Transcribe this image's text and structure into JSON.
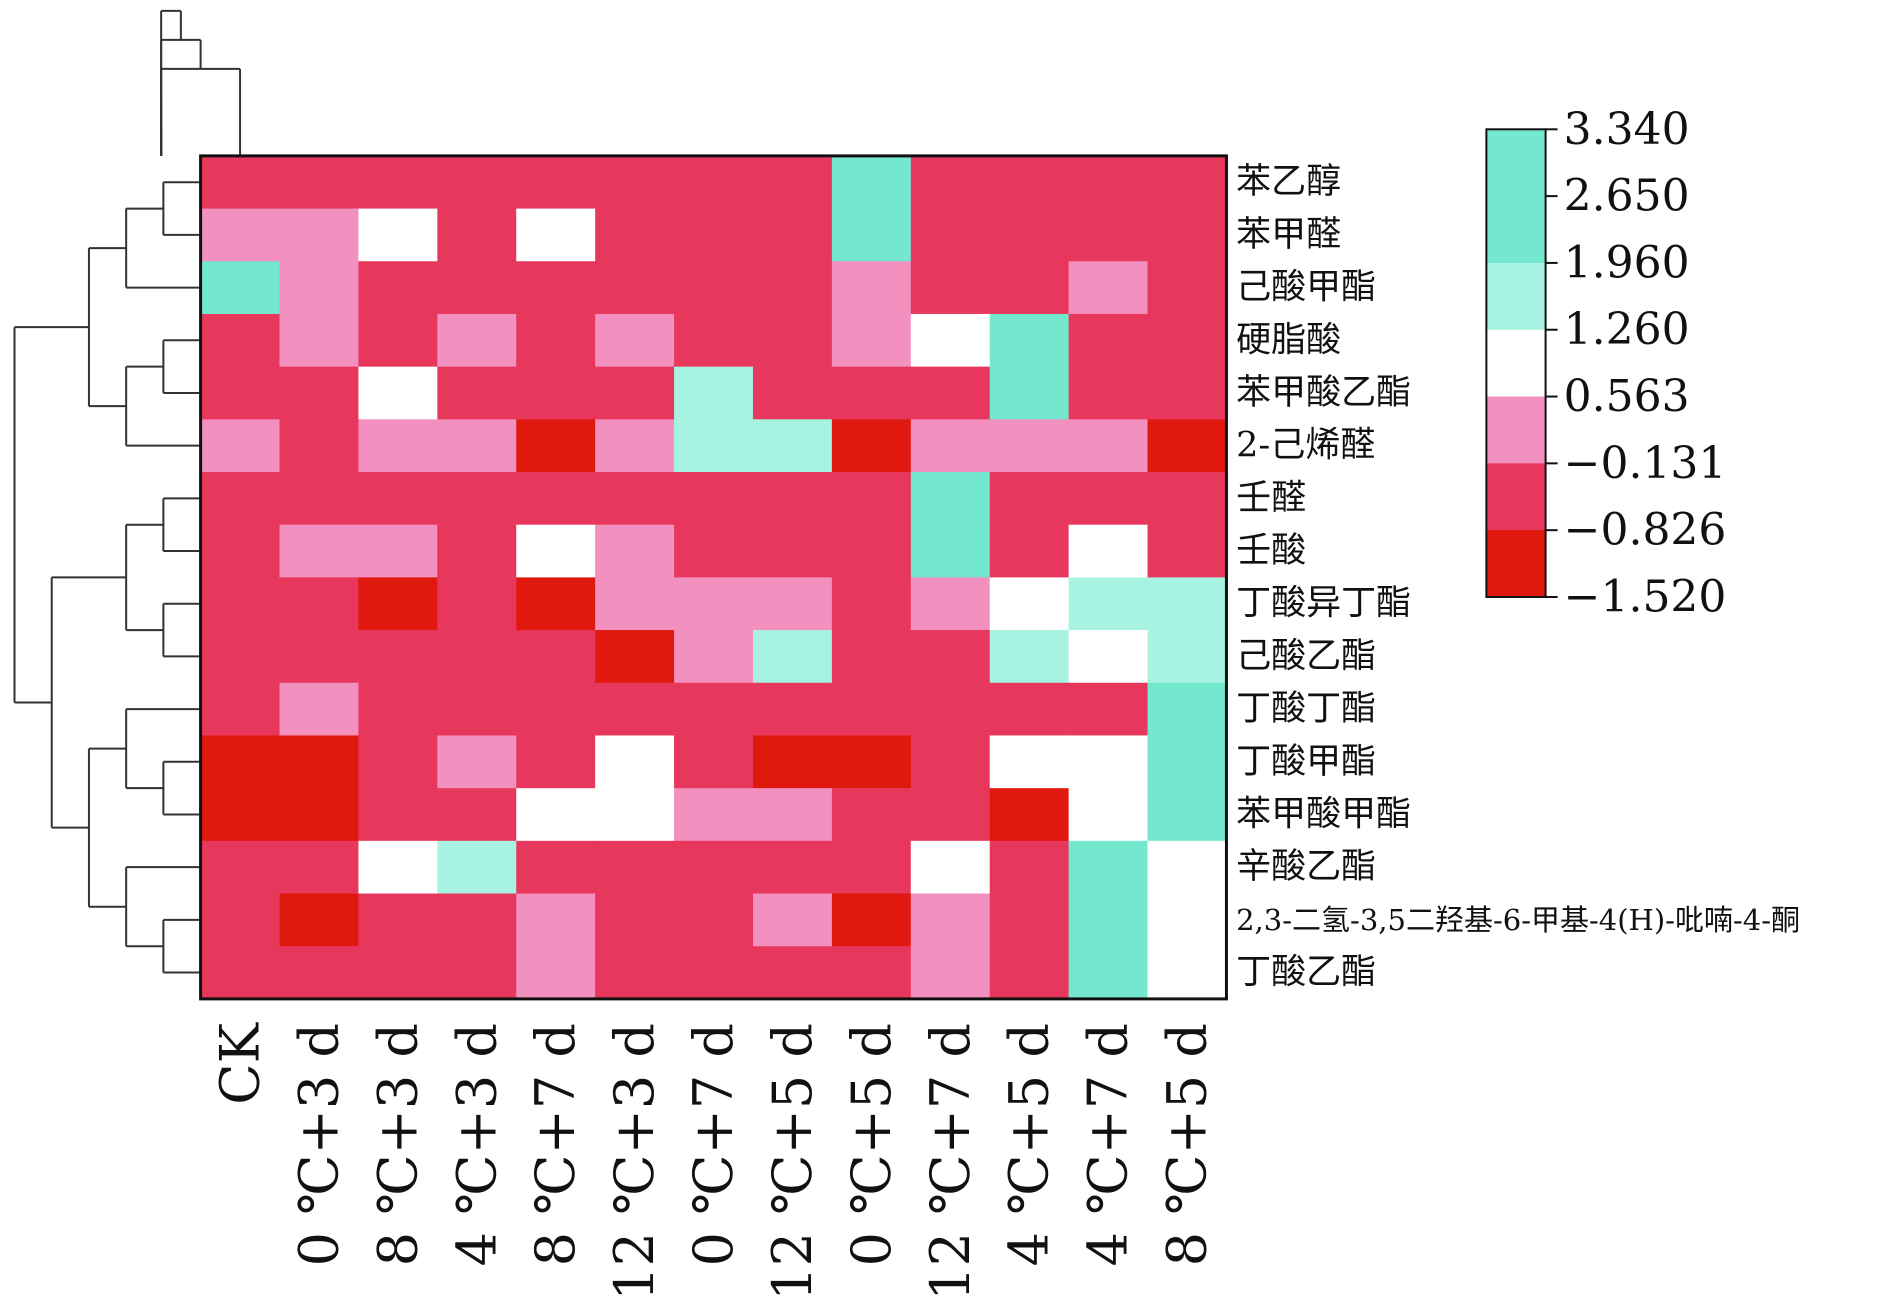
{
  "chart_data": {
    "type": "heatmap",
    "columns": [
      "CK",
      "0 ℃+3 d",
      "8 ℃+3 d",
      "4 ℃+3 d",
      "8 ℃+7 d",
      "12 ℃+3 d",
      "0 ℃+7 d",
      "12 ℃+5 d",
      "0 ℃+5 d",
      "12 ℃+7 d",
      "4 ℃+5 d",
      "4 ℃+7 d",
      "8 ℃+5 d"
    ],
    "rows": [
      "苯乙醇",
      "苯甲醛",
      "己酸甲酯",
      "硬脂酸",
      "苯甲酸乙酯",
      "2-己烯醛",
      "壬醛",
      "壬酸",
      "丁酸异丁酯",
      "己酸乙酯",
      "丁酸丁酯",
      "丁酸甲酯",
      "苯甲酸甲酯",
      "辛酸乙酯",
      "2,3-二氢-3,5二羟基-6-甲基-4(H)-吡喃-4-酮",
      "丁酸乙酯"
    ],
    "values": [
      [
        -0.48,
        -0.48,
        -0.48,
        -0.48,
        -0.48,
        -0.48,
        -0.48,
        -0.48,
        2.3,
        -0.48,
        -0.48,
        -0.48,
        -0.48
      ],
      [
        0.22,
        0.22,
        0.91,
        -0.48,
        0.91,
        -0.48,
        -0.48,
        -0.48,
        2.3,
        -0.48,
        -0.48,
        -0.48,
        -0.48
      ],
      [
        2.3,
        0.22,
        -0.48,
        -0.48,
        -0.48,
        -0.48,
        -0.48,
        -0.48,
        0.22,
        -0.48,
        -0.48,
        0.22,
        -0.48
      ],
      [
        -0.48,
        0.22,
        -0.48,
        0.22,
        -0.48,
        0.22,
        -0.48,
        -0.48,
        0.22,
        0.91,
        2.3,
        -0.48,
        -0.48
      ],
      [
        -0.48,
        -0.48,
        0.91,
        -0.48,
        -0.48,
        -0.48,
        1.61,
        -0.48,
        -0.48,
        -0.48,
        2.3,
        -0.48,
        -0.48
      ],
      [
        0.22,
        -0.48,
        0.22,
        0.22,
        -1.17,
        0.22,
        1.61,
        1.61,
        -1.17,
        0.22,
        0.22,
        0.22,
        -1.17
      ],
      [
        -0.48,
        -0.48,
        -0.48,
        -0.48,
        -0.48,
        -0.48,
        -0.48,
        -0.48,
        -0.48,
        2.3,
        -0.48,
        -0.48,
        -0.48
      ],
      [
        -0.48,
        0.22,
        0.22,
        -0.48,
        0.91,
        0.22,
        -0.48,
        -0.48,
        -0.48,
        2.3,
        -0.48,
        0.91,
        -0.48
      ],
      [
        -0.48,
        -0.48,
        -1.17,
        -0.48,
        -1.17,
        0.22,
        0.22,
        0.22,
        -0.48,
        0.22,
        0.91,
        1.61,
        1.61
      ],
      [
        -0.48,
        -0.48,
        -0.48,
        -0.48,
        -0.48,
        -1.17,
        0.22,
        1.61,
        -0.48,
        -0.48,
        1.61,
        0.91,
        1.61
      ],
      [
        -0.48,
        0.22,
        -0.48,
        -0.48,
        -0.48,
        -0.48,
        -0.48,
        -0.48,
        -0.48,
        -0.48,
        -0.48,
        -0.48,
        3.0
      ],
      [
        -1.17,
        -1.17,
        -0.48,
        0.22,
        -0.48,
        0.91,
        -0.48,
        -1.17,
        -1.17,
        -0.48,
        0.91,
        0.91,
        3.0
      ],
      [
        -1.17,
        -1.17,
        -0.48,
        -0.48,
        0.91,
        0.91,
        0.22,
        0.22,
        -0.48,
        -0.48,
        -1.17,
        0.91,
        3.0
      ],
      [
        -0.48,
        -0.48,
        0.91,
        1.61,
        -0.48,
        -0.48,
        -0.48,
        -0.48,
        -0.48,
        0.91,
        -0.48,
        2.3,
        0.91
      ],
      [
        -0.48,
        -1.17,
        -0.48,
        -0.48,
        0.22,
        -0.48,
        -0.48,
        0.22,
        -1.17,
        0.22,
        -0.48,
        2.3,
        0.91
      ],
      [
        -0.48,
        -0.48,
        -0.48,
        -0.48,
        0.22,
        -0.48,
        -0.48,
        -0.48,
        -0.48,
        0.22,
        -0.48,
        2.3,
        0.91
      ]
    ],
    "color_scale": {
      "breaks": [
        3.34,
        2.65,
        1.96,
        1.26,
        0.563,
        -0.131,
        -0.826,
        -1.52
      ],
      "tick_labels": [
        "3.340",
        "2.650",
        "1.960",
        "1.260",
        "0.563",
        "−0.131",
        "−0.826",
        "−1.520"
      ],
      "bin_colors": [
        "#74e8cf",
        "#74e8cf",
        "#a7f2e1",
        "#ffffff",
        "#f290bf",
        "#e8375c",
        "#e0190f"
      ]
    },
    "row_dendrogram": "((((苯乙醇,苯甲醛),己酸甲酯),((硬脂酸,苯甲酸乙酯),2-己烯醛)),(((壬醛,壬酸),(丁酸异丁酯,己酸乙酯)),((丁酸丁酯,(丁酸甲酯,苯甲酸甲酯)),(辛酸乙酯,(2,3-二氢-3,5二羟基-6-甲基-4(H)-吡喃-4-酮,丁酸乙酯)))))",
    "col_dendrogram": "(((CK,((0 ℃+3 d,8 ℃+3 d),4 ℃+3 d)),(((8 ℃+7 d,12 ℃+3 d),0 ℃+7 d),(12 ℃+5 d,0 ℃+5 d))),(12 ℃+7 d,(4 ℃+5 d,(4 ℃+7 d,8 ℃+5 d))))",
    "legend_position": "right",
    "title": "",
    "xlabel": "",
    "ylabel": ""
  }
}
